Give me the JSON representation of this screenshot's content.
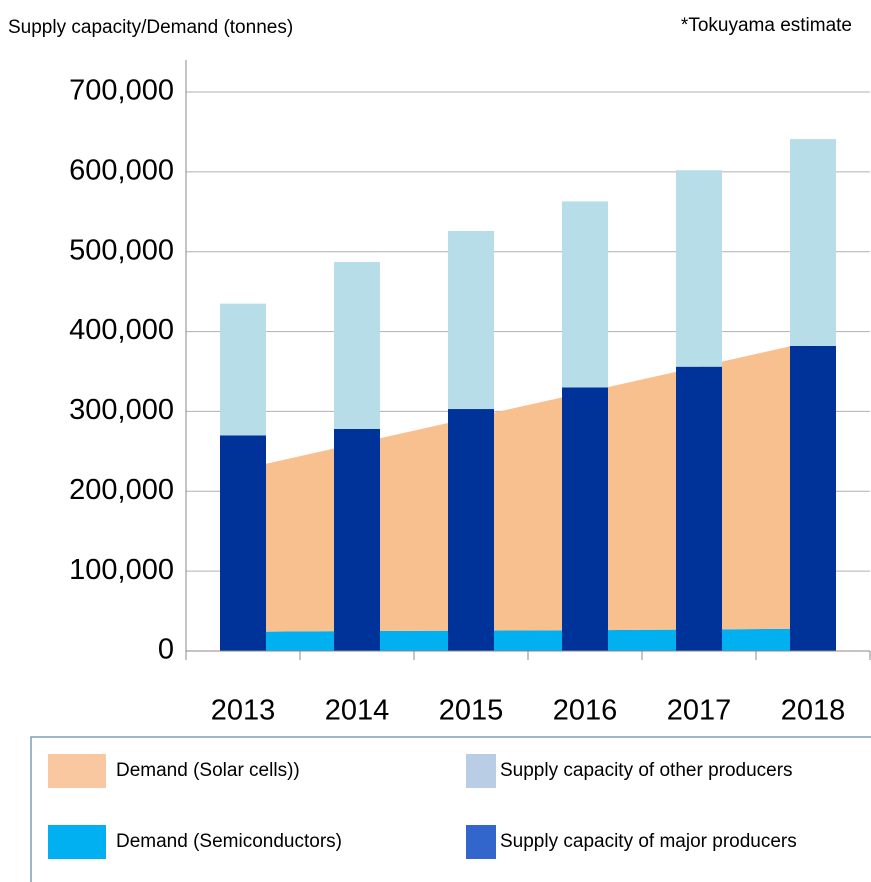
{
  "chart_data": {
    "type": "bar",
    "y_label": "Supply capacity/Demand (tonnes)",
    "annotation": "*Tokuyama estimate",
    "categories": [
      "2013",
      "2014",
      "2015",
      "2016",
      "2017",
      "2018"
    ],
    "series": [
      {
        "name": "Demand (Semiconductors)",
        "kind": "area",
        "color": "#00b0f0",
        "values": [
          24000,
          25000,
          25500,
          26000,
          27000,
          28000
        ]
      },
      {
        "name": "Demand (Solar cells))",
        "kind": "area",
        "color": "#f9c08f",
        "values": [
          204000,
          235000,
          266500,
          298000,
          329000,
          360000
        ]
      },
      {
        "name": "Supply capacity of major producers",
        "kind": "bar",
        "color": "#003399",
        "values": [
          270000,
          278000,
          303000,
          330000,
          356000,
          382000
        ]
      },
      {
        "name": "Supply capacity of other producers",
        "kind": "bar",
        "color": "#b7dde8",
        "values": [
          165000,
          209000,
          223000,
          233000,
          246000,
          259000
        ]
      }
    ],
    "ylim": [
      0,
      700000
    ],
    "yticks": [
      0,
      {
        "value": 100000,
        "label": "100,000"
      },
      {
        "value": 200000,
        "label": "200,000"
      },
      {
        "value": 300000,
        "label": "300,000"
      },
      {
        "value": 400000,
        "label": "400,000"
      },
      {
        "value": 500000,
        "label": "500,000"
      },
      {
        "value": 600000,
        "label": "600,000"
      },
      {
        "value": 700000,
        "label": "700,000"
      }
    ],
    "grid": true
  }
}
